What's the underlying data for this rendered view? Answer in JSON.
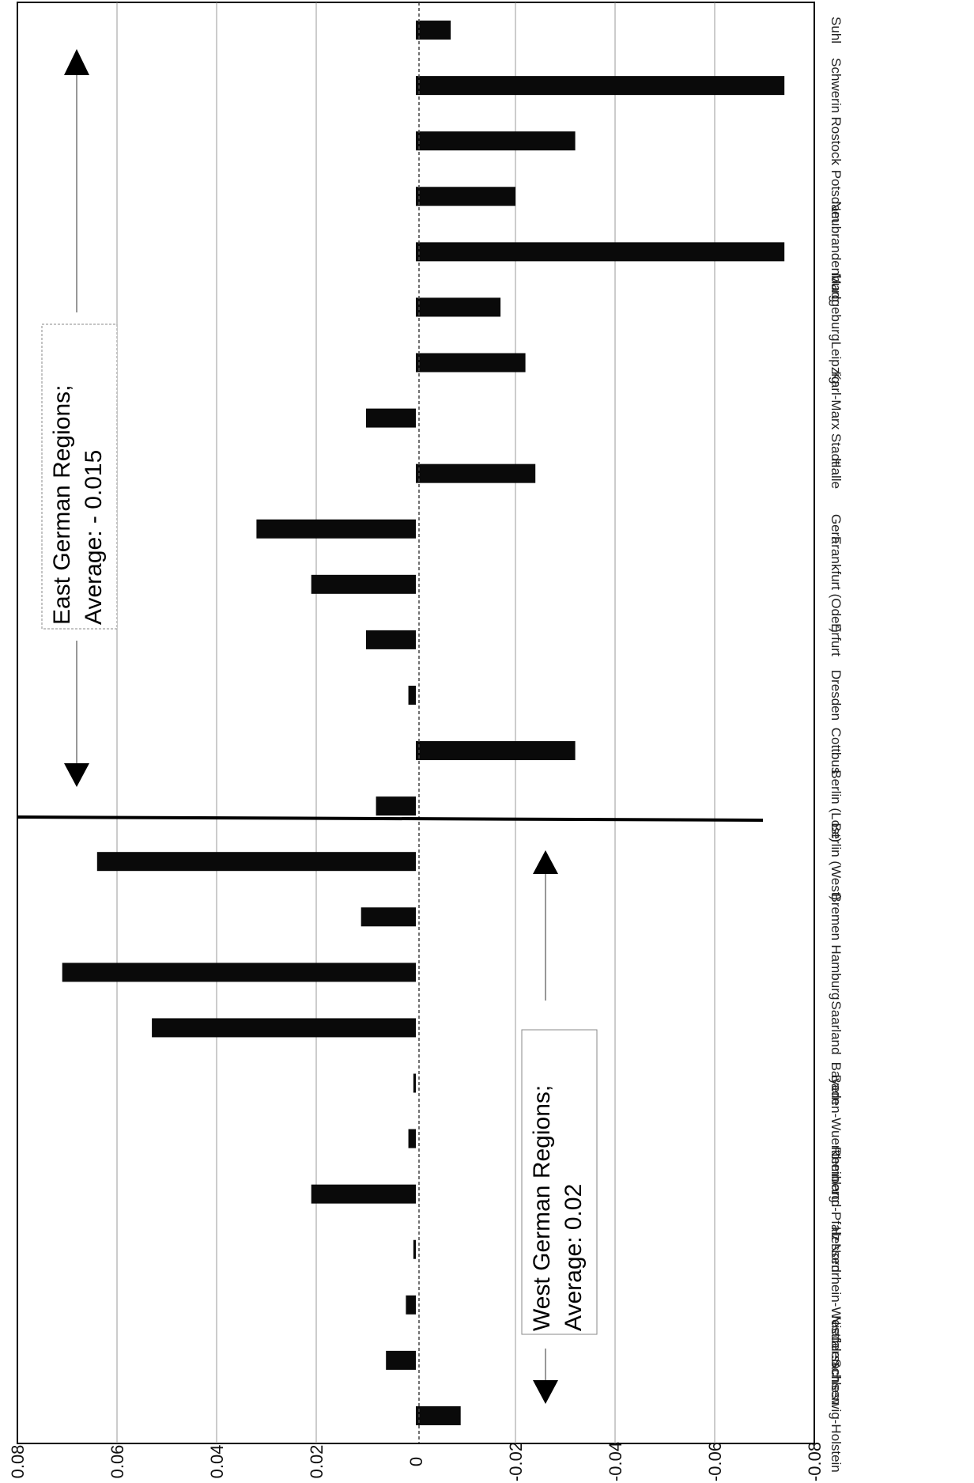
{
  "chart_data": {
    "type": "bar",
    "orientation": "rotated-90",
    "title": "",
    "xlabel": "",
    "ylabel": "",
    "ylim": [
      -0.08,
      0.08
    ],
    "y_ticks": [
      "0.08",
      "0.06",
      "0.04",
      "0.02",
      "0",
      "-0.02",
      "-0.04",
      "-0.06",
      "-0.08"
    ],
    "grid": true,
    "categories": [
      "Schleswig-Holstein",
      "Niedersachsen",
      "Nordrhein-Westfalen",
      "Hessen",
      "Rheinland-Pfalz",
      "Baden-Wuerttemberg",
      "Bayern",
      "Saarland",
      "Hamburg",
      "Bremen",
      "Berlin (West)",
      "Berlin (Lost)",
      "Cottbus",
      "Dresden",
      "Erfurt",
      "Frankfurt (Oder)",
      "Gera",
      "Halle",
      "Karl-Marx Stadt",
      "Leipzig",
      "Madgeburg",
      "Neubrandenburg",
      "Potsdam",
      "Rostock",
      "Schwerin",
      "Suhl"
    ],
    "values": [
      -0.009,
      0.006,
      0.002,
      0.0005,
      0.021,
      0.0015,
      0.0005,
      0.053,
      0.071,
      0.011,
      0.064,
      0.008,
      -0.032,
      0.0015,
      0.01,
      0.021,
      0.032,
      -0.024,
      0.01,
      -0.022,
      -0.017,
      -0.074,
      -0.02,
      -0.032,
      -0.074,
      -0.007
    ],
    "annotations": [
      {
        "line1": "East German Regions;",
        "line2": "Average: - 0.015"
      },
      {
        "line1": "West German Regions;",
        "line2": "Average: 0.02"
      }
    ]
  }
}
